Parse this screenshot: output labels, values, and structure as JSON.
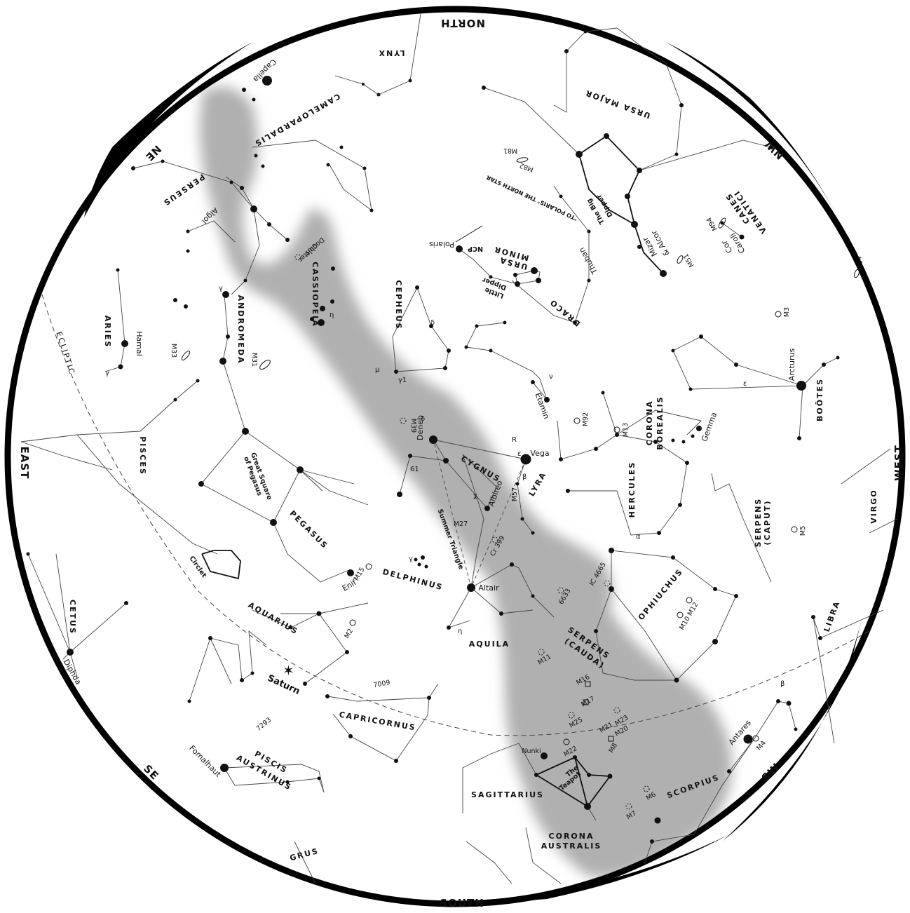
{
  "directions": {
    "north": "NORTH",
    "south": "SOUTH",
    "east": "EAST",
    "west": "WEST",
    "ne": "NE",
    "nw": "NW",
    "se": "SE",
    "sw": "SW"
  },
  "ecliptic_label": "ECLIPTIC",
  "constellations": {
    "lynx": "LYNX",
    "ursa_major": "URSA MAJOR",
    "camelopardalis": "CAMELOPARDALIS",
    "perseus": "PERSEUS",
    "canes_venatici_1": "CANES",
    "canes_venatici_2": "VENATICI",
    "ursa_minor_1": "URSA",
    "ursa_minor_2": "MINOR",
    "cassiopeia": "CASSIOPEIA",
    "cepheus": "CEPHEUS",
    "draco": "DRACO",
    "andromeda": "ANDROMEDA",
    "aries": "ARIES",
    "pisces": "PISCES",
    "cygnus": "CYGNUS",
    "lyra": "LYRA",
    "hercules": "HERCULES",
    "corona_borealis_1": "CORONA",
    "corona_borealis_2": "BOREALIS",
    "bootes": "BOÖTES",
    "virgo": "VIRGO",
    "serpens_caput_1": "SERPENS",
    "serpens_caput_2": "(CAPUT)",
    "pegasus": "PEGASUS",
    "delphinus": "DELPHINUS",
    "aquarius": "AQUARIUS",
    "aquila": "AQUILA",
    "ophiuchus": "OPHIUCHUS",
    "libra": "LIBRA",
    "serpens_cauda_1": "SERPENS",
    "serpens_cauda_2": "(CAUDA)",
    "cetus": "CETUS",
    "capricornus": "CAPRICORNUS",
    "piscis_austrinus_1": "PISCIS",
    "piscis_austrinus_2": "AUSTRINUS",
    "sagittarius": "SAGITTARIUS",
    "scorpius": "SCORPIUS",
    "corona_australis_1": "CORONA",
    "corona_australis_2": "AUSTRALIS",
    "grus": "GRUS"
  },
  "stars": {
    "capella": "Capella",
    "algol": "Algol",
    "polaris": "Polaris",
    "ncp": "NCP",
    "mizar_1": "Mizar",
    "mizar_2": "& Alcor",
    "cor_caroli_1": "Cor",
    "cor_caroli_2": "Caroli",
    "thuban": "Thuban",
    "hamal": "Hamal",
    "deneb": "Deneb",
    "vega": "Vega",
    "albireo": "Albireo",
    "etamin": "Etamin",
    "arcturus": "Arcturus",
    "gemma": "Gemma",
    "altair": "Altair",
    "enif": "Enif",
    "diphda": "Diphda",
    "fomalhaut": "Fomalhaut",
    "antares": "Antares",
    "nunki": "Nunki",
    "saturn": "Saturn"
  },
  "asterisms": {
    "big_dipper_1": "The Big",
    "big_dipper_2": "Dipper",
    "little_dipper_1": "Little",
    "little_dipper_2": "Dipper",
    "great_square_1": "Great Square",
    "great_square_2": "of Pegasus",
    "summer_triangle": "Summer Triangle",
    "circlet": "Circlet",
    "teapot_1": "The",
    "teapot_2": "Teapot",
    "to_polaris": "\"TO POLARIS\" THE NORTH STAR",
    "double_cluster_1": "Double",
    "double_cluster_2": "Cluster"
  },
  "deep_sky": {
    "m81": "M81",
    "m82": "M82",
    "m94": "M94",
    "m51": "M51",
    "m64": "M64",
    "m3": "M3",
    "m33": "M33",
    "m31": "M31",
    "m39": "M39",
    "m92": "M92",
    "m13": "M13",
    "m57": "M57",
    "m27": "M27",
    "cr399": "Cr 399",
    "m5": "M5",
    "m15": "M15",
    "m2": "M2",
    "ic4665": "IC 4665",
    "n6633": "6633",
    "m10m12": "M10 M12",
    "m11": "M11",
    "n7009": "7009",
    "n7293": "7293",
    "m16": "M16",
    "m17": "M17",
    "m25": "M25",
    "m23": "M23",
    "m21": "M21",
    "m20": "M20",
    "m8": "M8",
    "m22": "M22",
    "m4": "M4",
    "m6": "M6",
    "m7": "M7"
  },
  "greek": {
    "gamma_and": "γ",
    "gamma_ari": "γ",
    "eta_cas": "η",
    "delta_cep": "δ",
    "mu_cep": "μ",
    "gamma1_cep": "γ1",
    "epsilon_lyr": "ε",
    "beta_lyr": "β",
    "r_lyr": "R",
    "delta_cyg": "δ",
    "chi_cyg": "χ",
    "nu_dra": "ν",
    "epsilon_boo": "ε",
    "alpha_her": "α",
    "gamma_del": "γ",
    "eta_aql": "η",
    "beta_sco": "β",
    "sixtyone_cyg": "61"
  },
  "colors": {
    "milky_way": "#b0b0b0",
    "sky": "#ffffff",
    "ink": "#111111",
    "frame": "#000000"
  }
}
